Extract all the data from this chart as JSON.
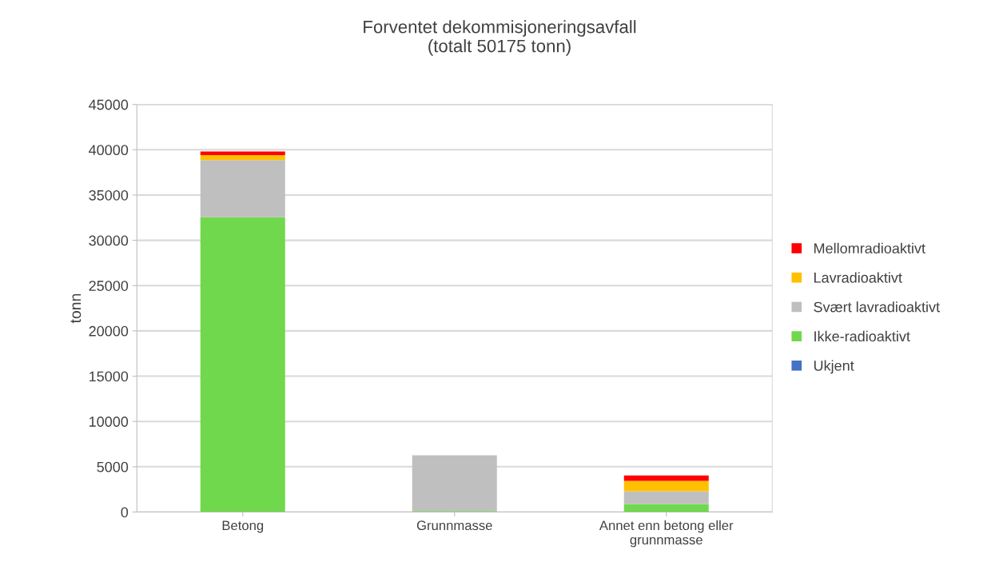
{
  "chart_data": {
    "type": "bar",
    "stacked": true,
    "title": "Forventet dekommisjoneringsavfall\n(totalt 50175 tonn)",
    "ylabel": "tonn",
    "categories": [
      "Betong",
      "Grunnmasse",
      "Annet enn betong eller\ngrunnmasse"
    ],
    "series": [
      {
        "name": "Ukjent",
        "color": "#4472c4",
        "values": [
          0,
          0,
          0
        ]
      },
      {
        "name": "Ikke-radioaktivt",
        "color": "#70d84c",
        "values": [
          32550,
          100,
          880
        ]
      },
      {
        "name": "Svært lavradioaktivt",
        "color": "#bfbfbf",
        "values": [
          6310,
          6160,
          1410
        ]
      },
      {
        "name": "Lavradioaktivt",
        "color": "#ffc000",
        "values": [
          540,
          0,
          1150
        ]
      },
      {
        "name": "Mellomradioaktivt",
        "color": "#ff0000",
        "values": [
          400,
          0,
          590
        ]
      }
    ],
    "ylim": [
      0,
      45000
    ],
    "yticks": [
      0,
      5000,
      10000,
      15000,
      20000,
      25000,
      30000,
      35000,
      40000,
      45000
    ],
    "grid": "y",
    "legend": "right"
  }
}
